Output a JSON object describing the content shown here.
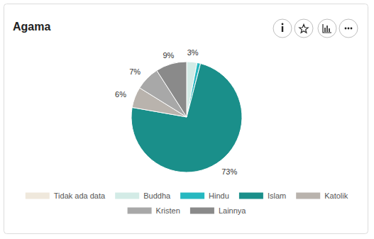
{
  "chart_data": {
    "type": "pie",
    "title": "Agama",
    "categories": [
      "Tidak ada data",
      "Buddha",
      "Hindu",
      "Islam",
      "Katolik",
      "Kristen",
      "Lainnya"
    ],
    "values": [
      0,
      3,
      1,
      73,
      6,
      7,
      9
    ],
    "value_labels": [
      null,
      "3%",
      null,
      "73%",
      "6%",
      "7%",
      "9%"
    ],
    "colors": [
      "#efe8dc",
      "#d3ebe6",
      "#26b8c0",
      "#1a8f8a",
      "#b9b3ad",
      "#a8a8a8",
      "#8a8a8a"
    ],
    "data_labels": true,
    "legend": "bottom"
  }
}
